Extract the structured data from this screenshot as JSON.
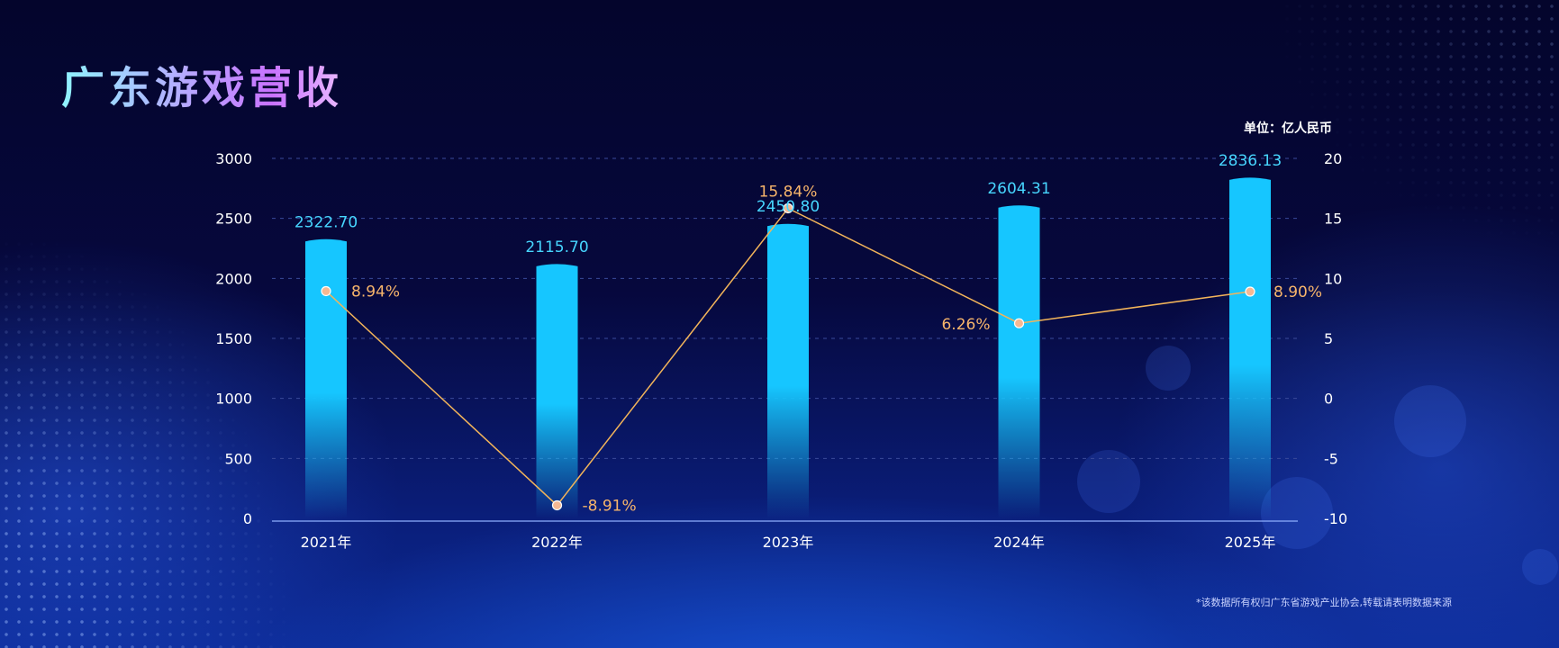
{
  "title": "广东游戏营收",
  "unit_label": "单位：亿人民币",
  "footnote": "*该数据所有权归广东省游戏产业协会,转载请表明数据来源",
  "colors": {
    "bar": "#16c6ff",
    "line": "#f2b45a",
    "point_fill": "#f6b893",
    "bar_label": "#47d6ff",
    "pct_label": "#f7b56b",
    "axis": "#8fb0ff",
    "grid": "#3a4a9a"
  },
  "chart_data": {
    "type": "bar",
    "categories": [
      "2021年",
      "2022年",
      "2023年",
      "2024年",
      "2025年"
    ],
    "series": [
      {
        "type": "bar",
        "axis": "left",
        "values": [
          2322.7,
          2115.7,
          2450.8,
          2604.31,
          2836.13
        ],
        "labels": [
          "2322.70",
          "2115.70",
          "2450.80",
          "2604.31",
          "2836.13"
        ]
      },
      {
        "type": "line",
        "axis": "right",
        "values": [
          8.94,
          -8.91,
          15.84,
          6.26,
          8.9
        ],
        "labels": [
          "8.94%",
          "-8.91%",
          "15.84%",
          "6.26%",
          "8.90%"
        ]
      }
    ],
    "ylim": [
      0,
      3000
    ],
    "yticks": [
      0,
      500,
      1000,
      1500,
      2000,
      2500,
      3000
    ],
    "y2lim": [
      -10,
      20
    ],
    "y2ticks": [
      -10,
      -5,
      0,
      5,
      10,
      15,
      20
    ],
    "grid": true,
    "legend": "none"
  }
}
